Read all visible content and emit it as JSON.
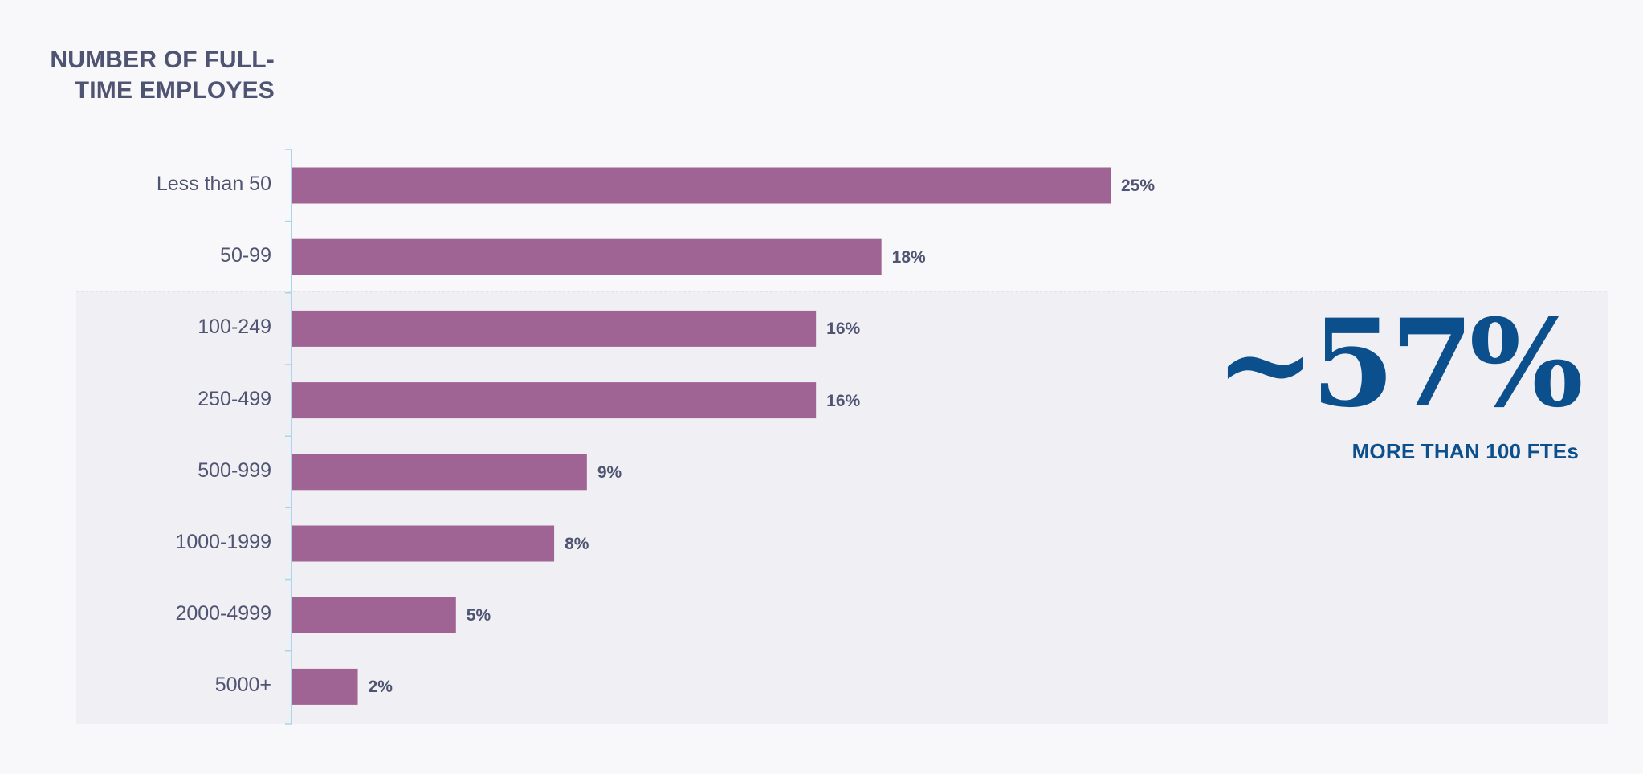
{
  "chart_data": {
    "type": "bar",
    "orientation": "horizontal",
    "title_lines": [
      "NUMBER OF FULL-",
      "TIME EMPLOYES"
    ],
    "categories": [
      "Less than 50",
      "50-99",
      "100-249",
      "250-499",
      "500-999",
      "1000-1999",
      "2000-4999",
      "5000+"
    ],
    "values": [
      25,
      18,
      16,
      16,
      9,
      8,
      5,
      2
    ],
    "value_labels": [
      "25%",
      "18%",
      "16%",
      "16%",
      "9%",
      "8%",
      "5%",
      "2%"
    ],
    "xlim": [
      0,
      25
    ],
    "highlight_from_category": "100-249",
    "grid": false,
    "bar_color": "#a06494",
    "highlight_color": "#f0eff4",
    "callout": {
      "value": "~57%",
      "caption": "MORE THAN 100 FTEs",
      "color": "#0b4f8c"
    }
  }
}
